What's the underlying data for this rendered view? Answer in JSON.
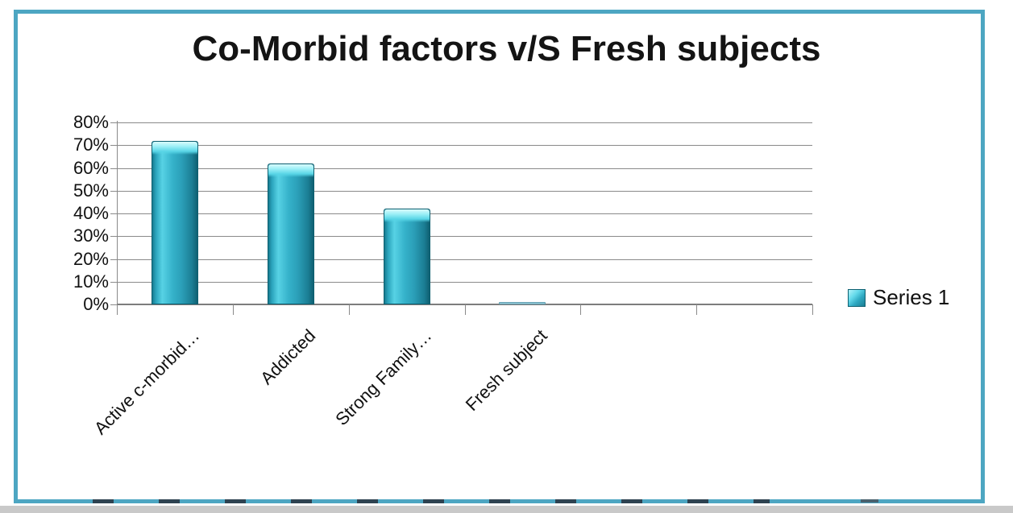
{
  "page": {
    "frame_border_color": "#4da6c2",
    "background_color": "#ffffff",
    "bottom_strip_color": "#c9c9c9"
  },
  "chart_data": {
    "type": "bar",
    "title": "Co-Morbid factors v/S Fresh subjects",
    "categories": [
      "Active c-morbid…",
      "Addicted",
      "Strong Family…",
      "Fresh subject"
    ],
    "values": [
      72,
      62,
      42,
      1
    ],
    "value_unit": "%",
    "series": [
      {
        "name": "Series 1",
        "values": [
          72,
          62,
          42,
          1
        ]
      }
    ],
    "ylim": [
      0,
      80
    ],
    "ytick_step": 10,
    "ytick_labels_top_to_bottom": [
      "80%",
      "70%",
      "60%",
      "50%",
      "40%",
      "30%",
      "20%",
      "10%",
      "0%"
    ],
    "x_slots_total": 6,
    "grid": true,
    "xlabel": "",
    "ylabel": "",
    "legend": {
      "entries": [
        "Series 1"
      ],
      "position": "right-middle"
    },
    "bar_color": "#2fb0c9",
    "bar_highlight_color": "#8deef6",
    "bar_edge_color": "#0f6072",
    "gridline_color": "#8a8a8a",
    "title_color": "#141414",
    "label_color": "#111111"
  }
}
